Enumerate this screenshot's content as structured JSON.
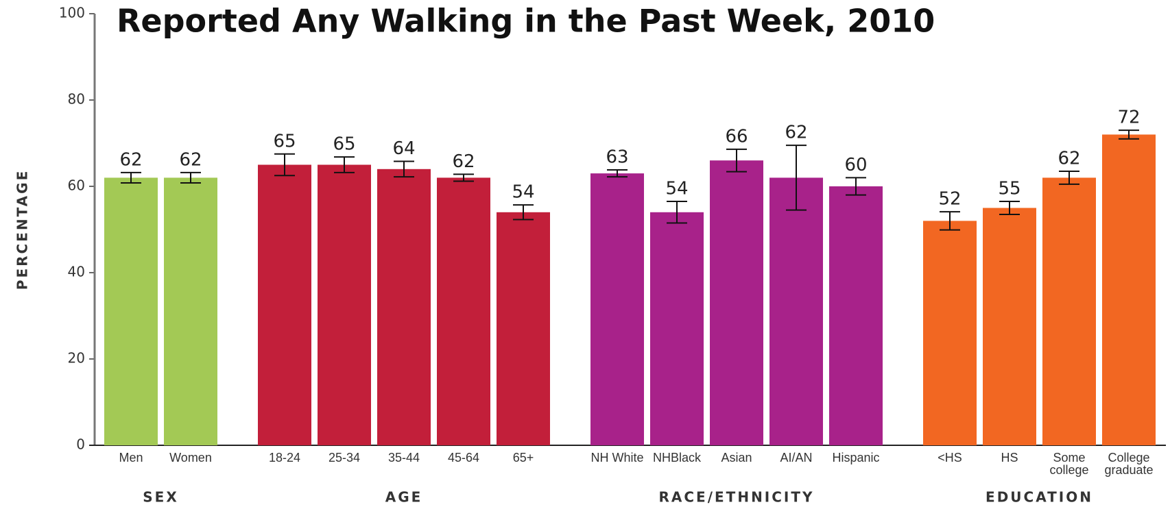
{
  "chart_data": {
    "type": "bar",
    "title": "Reported Any Walking in the Past Week, 2010",
    "ylabel": "PERCENTAGE",
    "ylim": [
      0,
      100
    ],
    "yticks": [
      0,
      20,
      40,
      60,
      80,
      100
    ],
    "groups": [
      {
        "name": "SEX",
        "color": "#a3c955",
        "categories": [
          "Men",
          "Women"
        ],
        "values": [
          62,
          62
        ],
        "errors": [
          1.2,
          1.2
        ]
      },
      {
        "name": "AGE",
        "color": "#c21f3a",
        "categories": [
          "18-24",
          "25-34",
          "35-44",
          "45-64",
          "65+"
        ],
        "values": [
          65,
          65,
          64,
          62,
          54
        ],
        "errors": [
          2.5,
          1.8,
          1.8,
          0.8,
          1.7
        ]
      },
      {
        "name": "RACE/ETHNICITY",
        "color": "#a8228a",
        "categories": [
          "NH White",
          "NHBlack",
          "Asian",
          "AI/AN",
          "Hispanic"
        ],
        "values": [
          63,
          54,
          66,
          62,
          60
        ],
        "errors": [
          0.8,
          2.5,
          2.6,
          7.5,
          2
        ]
      },
      {
        "name": "EDUCATION",
        "color": "#f26722",
        "categories": [
          "<HS",
          "HS",
          "Some college",
          "College graduate"
        ],
        "values": [
          52,
          55,
          62,
          72
        ],
        "errors": [
          2.1,
          1.5,
          1.5,
          1
        ]
      }
    ]
  }
}
